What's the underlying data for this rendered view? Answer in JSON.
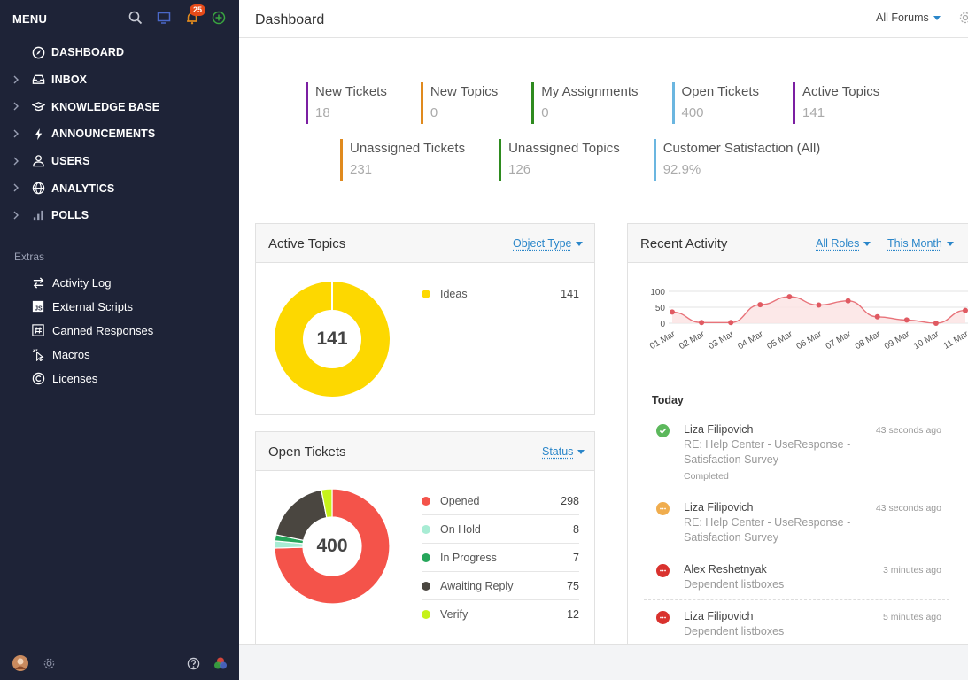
{
  "sidebar": {
    "menu_title": "MENU",
    "notification_count": "25",
    "items": [
      {
        "label": "DASHBOARD",
        "icon": "compass-icon",
        "expandable": false
      },
      {
        "label": "INBOX",
        "icon": "inbox-icon",
        "expandable": true
      },
      {
        "label": "KNOWLEDGE BASE",
        "icon": "graduation-cap-icon",
        "expandable": true
      },
      {
        "label": "ANNOUNCEMENTS",
        "icon": "lightning-icon",
        "expandable": true
      },
      {
        "label": "USERS",
        "icon": "users-icon",
        "expandable": true
      },
      {
        "label": "ANALYTICS",
        "icon": "globe-icon",
        "expandable": true
      },
      {
        "label": "POLLS",
        "icon": "bar-chart-icon",
        "expandable": true
      }
    ],
    "extras_label": "Extras",
    "extras": [
      {
        "label": "Activity Log",
        "icon": "arrows-icon"
      },
      {
        "label": "External Scripts",
        "icon": "js-icon"
      },
      {
        "label": "Canned Responses",
        "icon": "hash-icon"
      },
      {
        "label": "Macros",
        "icon": "cursor-click-icon"
      },
      {
        "label": "Licenses",
        "icon": "copyright-icon"
      }
    ]
  },
  "header": {
    "title": "Dashboard",
    "forum_filter": "All Forums"
  },
  "stats": {
    "row1": [
      {
        "label": "New Tickets",
        "value": "18",
        "color": "#7b1fa2"
      },
      {
        "label": "New Topics",
        "value": "0",
        "color": "#e08a1e"
      },
      {
        "label": "My Assignments",
        "value": "0",
        "color": "#2e8b1f"
      },
      {
        "label": "Open Tickets",
        "value": "400",
        "color": "#6bb6e0"
      },
      {
        "label": "Active Topics",
        "value": "141",
        "color": "#7b1fa2"
      }
    ],
    "row2": [
      {
        "label": "Unassigned Tickets",
        "value": "231",
        "color": "#e08a1e"
      },
      {
        "label": "Unassigned Topics",
        "value": "126",
        "color": "#2e8b1f"
      },
      {
        "label": "Customer Satisfaction (All)",
        "value": "92.9%",
        "color": "#6bb6e0"
      }
    ]
  },
  "active_topics": {
    "title": "Active Topics",
    "filter": "Object Type",
    "total": "141",
    "legend": [
      {
        "name": "Ideas",
        "count": 141,
        "color": "#fdd800"
      }
    ]
  },
  "open_tickets": {
    "title": "Open Tickets",
    "filter": "Status",
    "total": "400",
    "legend": [
      {
        "name": "Opened",
        "count": 298,
        "color": "#f4534a"
      },
      {
        "name": "On Hold",
        "count": 8,
        "color": "#a8ecd4"
      },
      {
        "name": "In Progress",
        "count": 7,
        "color": "#26a65b"
      },
      {
        "name": "Awaiting Reply",
        "count": 75,
        "color": "#4a4640"
      },
      {
        "name": "Verify",
        "count": 12,
        "color": "#c6f21a"
      }
    ]
  },
  "recent_activity": {
    "title": "Recent Activity",
    "role_filter": "All Roles",
    "period_filter": "This Month",
    "today_label": "Today",
    "items": [
      {
        "author": "Liza Filipovich",
        "subject": "RE: Help Center - UseResponse - Satisfaction Survey",
        "status": "Completed",
        "time": "43 seconds ago",
        "icon": "check-circle-icon",
        "color": "#5cb85c"
      },
      {
        "author": "Liza Filipovich",
        "subject": "RE: Help Center - UseResponse - Satisfaction Survey",
        "status": "",
        "time": "43 seconds ago",
        "icon": "chat-bubble-icon",
        "color": "#f0ad4e"
      },
      {
        "author": "Alex Reshetnyak",
        "subject": "Dependent listboxes",
        "status": "",
        "time": "3 minutes ago",
        "icon": "chat-bubble-icon",
        "color": "#d9322e"
      },
      {
        "author": "Liza Filipovich",
        "subject": "Dependent listboxes",
        "status": "",
        "time": "5 minutes ago",
        "icon": "chat-bubble-icon",
        "color": "#d9322e"
      }
    ]
  },
  "chart_data": {
    "type": "area",
    "categories": [
      "01 Mar",
      "02 Mar",
      "03 Mar",
      "04 Mar",
      "05 Mar",
      "06 Mar",
      "07 Mar",
      "08 Mar",
      "09 Mar",
      "10 Mar",
      "11 Mar"
    ],
    "series": [
      {
        "values": [
          35,
          2,
          2,
          58,
          83,
          57,
          70,
          20,
          10,
          0,
          40
        ]
      }
    ],
    "y_ticks": [
      100,
      50,
      0
    ],
    "ylim": [
      0,
      100
    ],
    "color": "#e8737a",
    "grid": true
  }
}
